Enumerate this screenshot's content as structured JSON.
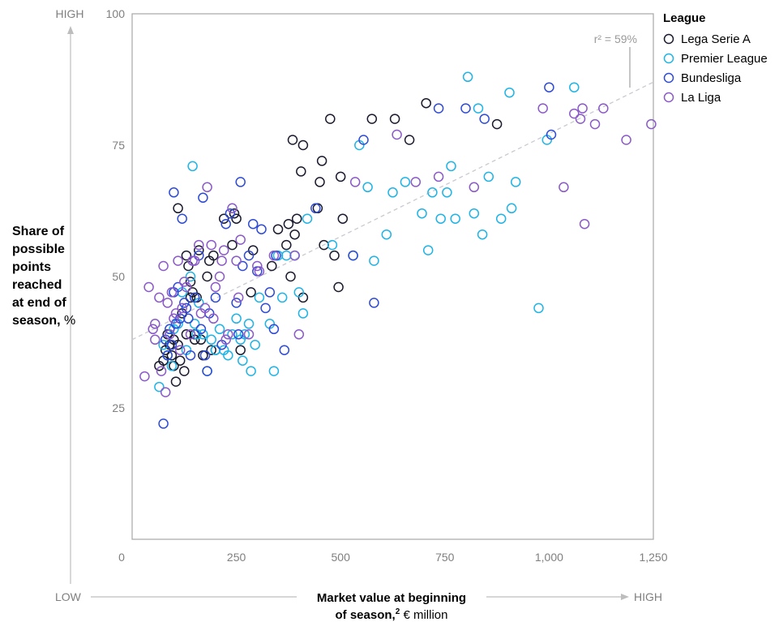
{
  "chart_data": {
    "type": "scatter",
    "x_ticks": [
      "0",
      "250",
      "500",
      "750",
      "1,000",
      "1,250"
    ],
    "y_ticks": [
      "25",
      "50",
      "75",
      "100"
    ],
    "xlim": [
      0,
      1250
    ],
    "ylim": [
      0,
      100
    ],
    "x_arrow": {
      "low": "LOW",
      "high": "HIGH"
    },
    "y_arrow": {
      "high": "HIGH"
    },
    "ylabel_lines": [
      "Share of",
      "possible",
      "points",
      "reached",
      "at end of"
    ],
    "ylabel_last": "season,",
    "ylabel_unit": "%",
    "xlabel_line1": "Market value at beginning",
    "xlabel_line2": "of season,",
    "xlabel_sup": "2",
    "xlabel_unit": "€ million",
    "legend_title": "League",
    "legend_position": "top-right",
    "trendline": {
      "x": [
        0,
        1250
      ],
      "y": [
        38,
        87
      ],
      "label": "r² = 59%",
      "style": "dashed"
    },
    "series": [
      {
        "name": "Lega Serie A",
        "color": "#1a1a2e",
        "points": [
          [
            65,
            33
          ],
          [
            75,
            34
          ],
          [
            80,
            36
          ],
          [
            85,
            39
          ],
          [
            90,
            37
          ],
          [
            95,
            35
          ],
          [
            100,
            38
          ],
          [
            100,
            33
          ],
          [
            105,
            30
          ],
          [
            110,
            37
          ],
          [
            110,
            63
          ],
          [
            115,
            34
          ],
          [
            120,
            43
          ],
          [
            125,
            32
          ],
          [
            130,
            39
          ],
          [
            130,
            54
          ],
          [
            135,
            52
          ],
          [
            140,
            49
          ],
          [
            140,
            46
          ],
          [
            145,
            47
          ],
          [
            150,
            38
          ],
          [
            150,
            39
          ],
          [
            155,
            46
          ],
          [
            160,
            55
          ],
          [
            165,
            38
          ],
          [
            170,
            35
          ],
          [
            180,
            50
          ],
          [
            185,
            53
          ],
          [
            190,
            36
          ],
          [
            195,
            54
          ],
          [
            200,
            36
          ],
          [
            220,
            61
          ],
          [
            240,
            56
          ],
          [
            245,
            62
          ],
          [
            250,
            61
          ],
          [
            260,
            36
          ],
          [
            285,
            47
          ],
          [
            290,
            55
          ],
          [
            335,
            52
          ],
          [
            350,
            59
          ],
          [
            370,
            56
          ],
          [
            375,
            60
          ],
          [
            380,
            50
          ],
          [
            385,
            76
          ],
          [
            390,
            58
          ],
          [
            395,
            61
          ],
          [
            405,
            70
          ],
          [
            410,
            46
          ],
          [
            410,
            75
          ],
          [
            445,
            63
          ],
          [
            450,
            68
          ],
          [
            455,
            72
          ],
          [
            460,
            56
          ],
          [
            475,
            80
          ],
          [
            485,
            54
          ],
          [
            495,
            48
          ],
          [
            500,
            69
          ],
          [
            505,
            61
          ],
          [
            575,
            80
          ],
          [
            630,
            80
          ],
          [
            665,
            76
          ],
          [
            705,
            83
          ],
          [
            875,
            79
          ]
        ]
      },
      {
        "name": "Premier League",
        "color": "#1fb4e6",
        "points": [
          [
            65,
            29
          ],
          [
            75,
            37
          ],
          [
            85,
            35
          ],
          [
            95,
            33
          ],
          [
            100,
            40
          ],
          [
            110,
            41
          ],
          [
            120,
            47
          ],
          [
            130,
            36
          ],
          [
            140,
            50
          ],
          [
            145,
            71
          ],
          [
            150,
            41
          ],
          [
            155,
            39
          ],
          [
            160,
            45
          ],
          [
            170,
            39
          ],
          [
            180,
            32
          ],
          [
            190,
            38
          ],
          [
            200,
            36
          ],
          [
            210,
            40
          ],
          [
            220,
            36
          ],
          [
            230,
            35
          ],
          [
            240,
            39
          ],
          [
            250,
            42
          ],
          [
            260,
            38
          ],
          [
            265,
            34
          ],
          [
            270,
            39
          ],
          [
            280,
            41
          ],
          [
            285,
            32
          ],
          [
            295,
            37
          ],
          [
            305,
            46
          ],
          [
            330,
            41
          ],
          [
            340,
            32
          ],
          [
            350,
            54
          ],
          [
            360,
            46
          ],
          [
            370,
            54
          ],
          [
            390,
            54
          ],
          [
            400,
            47
          ],
          [
            410,
            43
          ],
          [
            420,
            61
          ],
          [
            480,
            56
          ],
          [
            530,
            54
          ],
          [
            545,
            75
          ],
          [
            565,
            67
          ],
          [
            580,
            53
          ],
          [
            610,
            58
          ],
          [
            625,
            66
          ],
          [
            655,
            68
          ],
          [
            695,
            62
          ],
          [
            710,
            55
          ],
          [
            720,
            66
          ],
          [
            740,
            61
          ],
          [
            755,
            66
          ],
          [
            765,
            71
          ],
          [
            775,
            61
          ],
          [
            805,
            88
          ],
          [
            820,
            62
          ],
          [
            830,
            82
          ],
          [
            840,
            58
          ],
          [
            855,
            69
          ],
          [
            885,
            61
          ],
          [
            905,
            85
          ],
          [
            910,
            63
          ],
          [
            920,
            68
          ],
          [
            975,
            44
          ],
          [
            995,
            76
          ],
          [
            1060,
            86
          ]
        ]
      },
      {
        "name": "Bundesliga",
        "color": "#2f4bd6",
        "points": [
          [
            75,
            22
          ],
          [
            80,
            38
          ],
          [
            85,
            35
          ],
          [
            90,
            40
          ],
          [
            95,
            37
          ],
          [
            100,
            66
          ],
          [
            100,
            47
          ],
          [
            105,
            41
          ],
          [
            110,
            48
          ],
          [
            115,
            42
          ],
          [
            120,
            61
          ],
          [
            125,
            45
          ],
          [
            130,
            44
          ],
          [
            135,
            42
          ],
          [
            140,
            35
          ],
          [
            150,
            46
          ],
          [
            160,
            54
          ],
          [
            165,
            40
          ],
          [
            170,
            65
          ],
          [
            175,
            35
          ],
          [
            180,
            32
          ],
          [
            185,
            43
          ],
          [
            200,
            46
          ],
          [
            215,
            37
          ],
          [
            225,
            60
          ],
          [
            235,
            62
          ],
          [
            250,
            45
          ],
          [
            255,
            39
          ],
          [
            260,
            68
          ],
          [
            265,
            52
          ],
          [
            280,
            54
          ],
          [
            290,
            60
          ],
          [
            300,
            51
          ],
          [
            310,
            59
          ],
          [
            320,
            44
          ],
          [
            330,
            47
          ],
          [
            340,
            40
          ],
          [
            345,
            54
          ],
          [
            365,
            36
          ],
          [
            440,
            63
          ],
          [
            530,
            54
          ],
          [
            555,
            76
          ],
          [
            580,
            45
          ],
          [
            735,
            82
          ],
          [
            800,
            82
          ],
          [
            845,
            80
          ],
          [
            1000,
            86
          ],
          [
            1005,
            77
          ]
        ]
      },
      {
        "name": "La Liga",
        "color": "#8a5ac8",
        "points": [
          [
            30,
            31
          ],
          [
            40,
            48
          ],
          [
            50,
            40
          ],
          [
            55,
            38
          ],
          [
            55,
            41
          ],
          [
            65,
            46
          ],
          [
            70,
            32
          ],
          [
            75,
            52
          ],
          [
            80,
            28
          ],
          [
            85,
            45
          ],
          [
            90,
            39
          ],
          [
            95,
            47
          ],
          [
            100,
            42
          ],
          [
            105,
            43
          ],
          [
            110,
            53
          ],
          [
            115,
            36
          ],
          [
            120,
            44
          ],
          [
            125,
            49
          ],
          [
            130,
            48
          ],
          [
            140,
            39
          ],
          [
            145,
            53
          ],
          [
            150,
            53
          ],
          [
            160,
            56
          ],
          [
            165,
            43
          ],
          [
            175,
            44
          ],
          [
            180,
            67
          ],
          [
            190,
            56
          ],
          [
            195,
            42
          ],
          [
            200,
            48
          ],
          [
            210,
            50
          ],
          [
            215,
            53
          ],
          [
            220,
            55
          ],
          [
            225,
            38
          ],
          [
            230,
            39
          ],
          [
            240,
            63
          ],
          [
            250,
            53
          ],
          [
            255,
            46
          ],
          [
            260,
            57
          ],
          [
            280,
            39
          ],
          [
            300,
            52
          ],
          [
            305,
            51
          ],
          [
            340,
            54
          ],
          [
            390,
            54
          ],
          [
            400,
            39
          ],
          [
            535,
            68
          ],
          [
            635,
            77
          ],
          [
            680,
            68
          ],
          [
            735,
            69
          ],
          [
            820,
            67
          ],
          [
            985,
            82
          ],
          [
            1035,
            67
          ],
          [
            1060,
            81
          ],
          [
            1075,
            80
          ],
          [
            1080,
            82
          ],
          [
            1085,
            60
          ],
          [
            1110,
            79
          ],
          [
            1130,
            82
          ],
          [
            1185,
            76
          ],
          [
            1245,
            79
          ]
        ]
      }
    ]
  }
}
